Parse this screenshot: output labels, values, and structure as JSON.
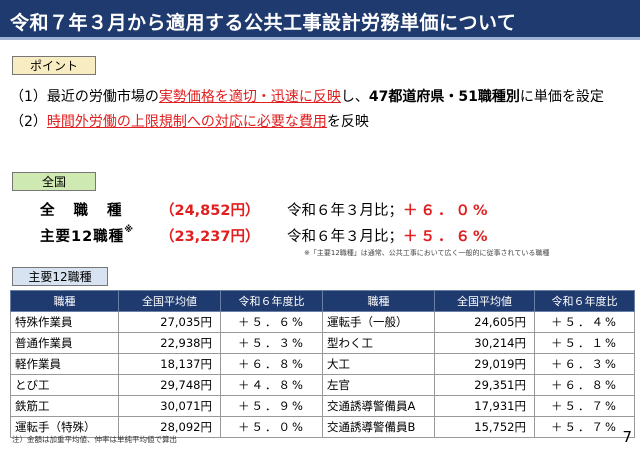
{
  "title": "令和７年３月から適用する公共工事設計労務単価について",
  "point_tag": "ポイント",
  "points": [
    {
      "num": "（1）",
      "pre": "最近の労働市場の",
      "highlight": "実勢価格を適切・迅速に反映",
      "mid": "し、",
      "bold": "47都道府県・51職種別",
      "post": "に単価を設定"
    },
    {
      "num": "（2）",
      "pre": "",
      "highlight": "時間外労働の上限規制への対応に必要な費用",
      "mid": "",
      "bold": "",
      "post": "を反映"
    }
  ],
  "all_tag": "全国",
  "summary": [
    {
      "label": "全職種",
      "note_mark": "",
      "value": "（24,852円）",
      "compare_label": "令和６年３月比；",
      "compare_value": "＋６．０%"
    },
    {
      "label": "主要12職種",
      "note_mark": "※",
      "value": "（23,237円）",
      "compare_label": "令和６年３月比；",
      "compare_value": "＋５．６%"
    }
  ],
  "summary_footnote": "※「主要12職種」は通常、公共工事において広く一般的に従事されている職種",
  "major_tag": "主要12職種",
  "table": {
    "headers": [
      "職種",
      "全国平均値",
      "令和６年度比",
      "職種",
      "全国平均値",
      "令和６年度比"
    ],
    "rows": [
      [
        "特殊作業員",
        "27,035円",
        "＋５．６%",
        "運転手（一般）",
        "24,605円",
        "＋５．４%"
      ],
      [
        "普通作業員",
        "22,938円",
        "＋５．３%",
        "型わく工",
        "30,214円",
        "＋５．１%"
      ],
      [
        "軽作業員",
        "18,137円",
        "＋６．８%",
        "大工",
        "29,019円",
        "＋６．３%"
      ],
      [
        "とび工",
        "29,748円",
        "＋４．８%",
        "左官",
        "29,351円",
        "＋６．８%"
      ],
      [
        "鉄筋工",
        "30,071円",
        "＋５．９%",
        "交通誘導警備員A",
        "17,931円",
        "＋５．７%"
      ],
      [
        "運転手（特殊）",
        "28,092円",
        "＋５．０%",
        "交通誘導警備員B",
        "15,752円",
        "＋５．７%"
      ]
    ]
  },
  "footnote": "注）金額は加重平均値、伸率は単純平均値で算出",
  "page_number": "7",
  "colors": {
    "title_bg": "#1f3a6e",
    "accent_red": "#e02020",
    "point_tag_bg": "#f7ecc2",
    "all_tag_bg": "#cfe9b3",
    "major_tag_bg": "#d7e3f1"
  }
}
